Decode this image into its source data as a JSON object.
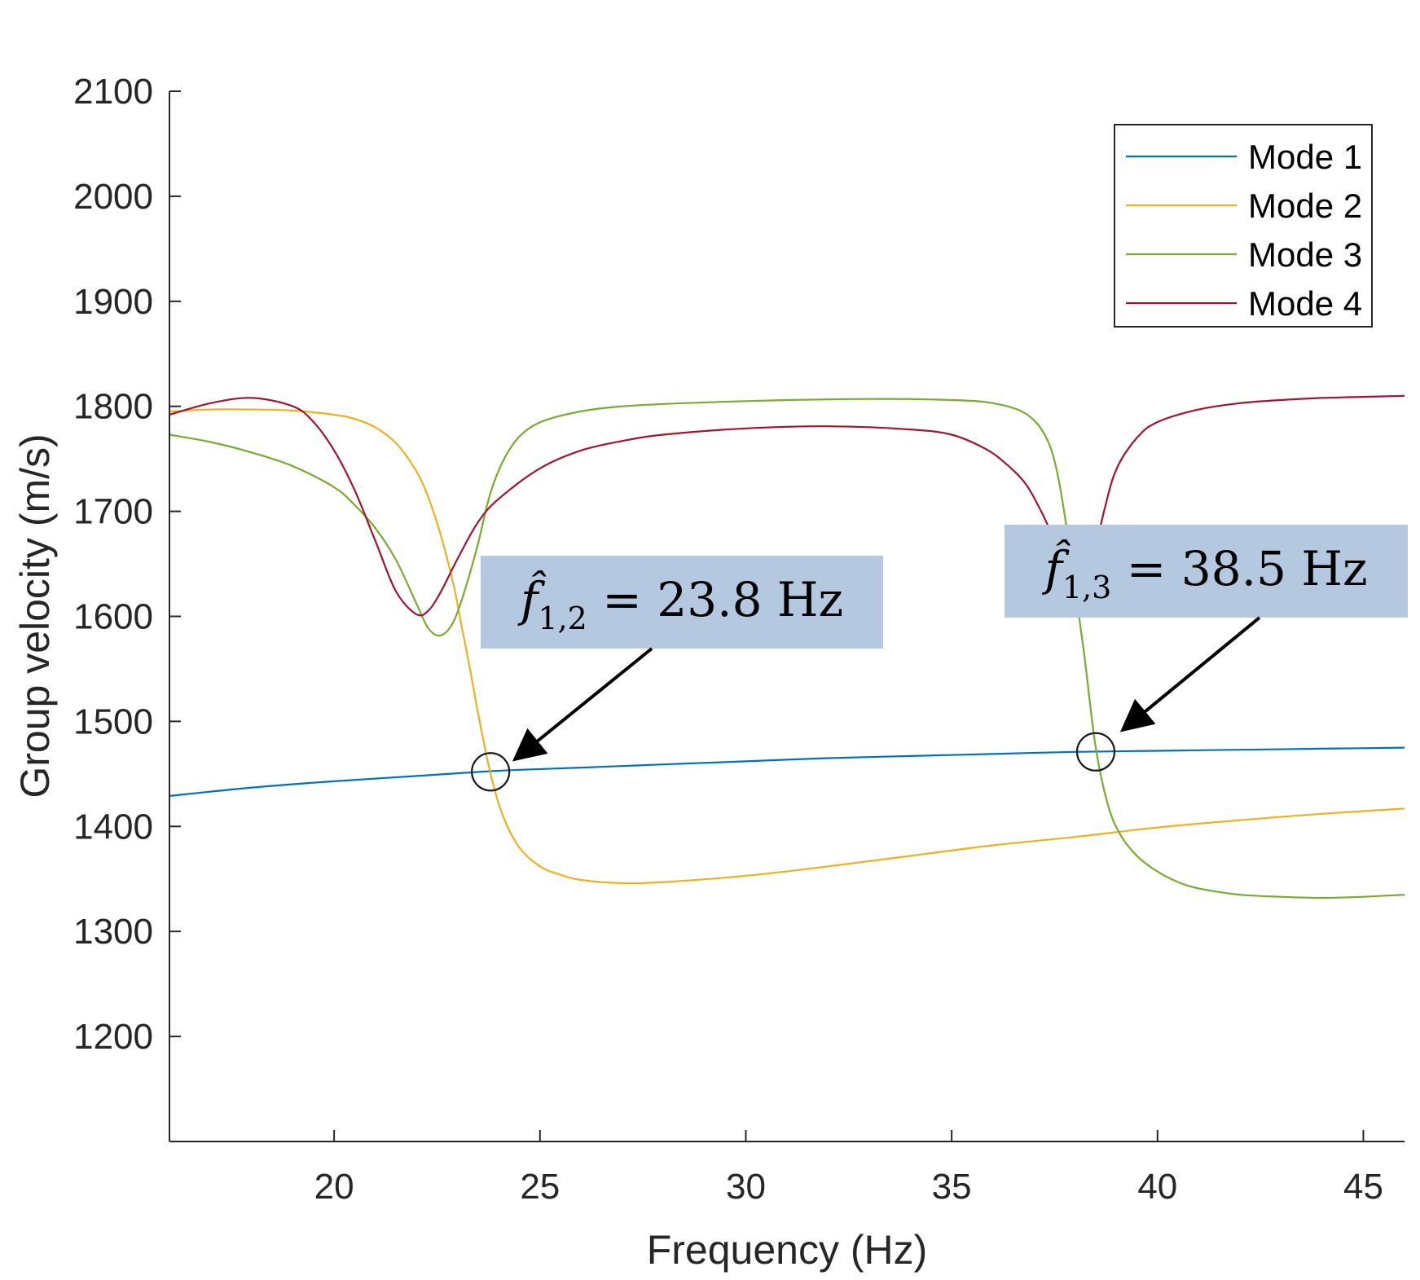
{
  "chart_data": {
    "type": "line",
    "title": "",
    "xlabel": "Frequency (Hz)",
    "ylabel": "Group velocity (m/s)",
    "xlim": [
      16,
      46
    ],
    "ylim": [
      1100,
      2100
    ],
    "xticks": [
      20,
      25,
      30,
      35,
      40,
      45
    ],
    "yticks": [
      1200,
      1300,
      1400,
      1500,
      1600,
      1700,
      1800,
      1900,
      2000,
      2100
    ],
    "grid": false,
    "legend": {
      "position": "top-right"
    },
    "series": [
      {
        "name": "Mode 1",
        "color": "#0072BD",
        "x": [
          16,
          18,
          20,
          22,
          24,
          26,
          28,
          30,
          32,
          34,
          36,
          38,
          40,
          42,
          44,
          46
        ],
        "y": [
          1429,
          1437,
          1443,
          1448,
          1453,
          1456,
          1459,
          1462,
          1465,
          1467,
          1469,
          1471,
          1472,
          1473,
          1474,
          1475
        ]
      },
      {
        "name": "Mode 2",
        "color": "#EDB120",
        "x": [
          16,
          17,
          18,
          19,
          20,
          20.5,
          21,
          21.5,
          22,
          22.3,
          22.6,
          22.9,
          23.1,
          23.3,
          23.5,
          23.8,
          24.1,
          24.5,
          25,
          25.5,
          26,
          27,
          28,
          30,
          32,
          34,
          36,
          38,
          40,
          42,
          44,
          46
        ],
        "y": [
          1795,
          1797,
          1797,
          1796,
          1792,
          1788,
          1780,
          1765,
          1738,
          1712,
          1676,
          1630,
          1590,
          1550,
          1507,
          1450,
          1410,
          1380,
          1362,
          1354,
          1349,
          1346,
          1347,
          1353,
          1362,
          1372,
          1382,
          1390,
          1399,
          1406,
          1412,
          1417
        ]
      },
      {
        "name": "Mode 3",
        "color": "#77AC30",
        "x": [
          16,
          17,
          18,
          19,
          20,
          20.5,
          21,
          21.5,
          22,
          22.3,
          22.6,
          22.9,
          23.2,
          23.5,
          23.8,
          24.2,
          24.7,
          25.5,
          27,
          30,
          33,
          35,
          36,
          36.8,
          37.3,
          37.6,
          37.9,
          38.2,
          38.5,
          38.8,
          39.1,
          39.5,
          40,
          40.5,
          41,
          42,
          43,
          44,
          45,
          46
        ],
        "y": [
          1773,
          1766,
          1756,
          1743,
          1723,
          1706,
          1684,
          1654,
          1612,
          1588,
          1582,
          1595,
          1628,
          1670,
          1718,
          1755,
          1778,
          1791,
          1800,
          1805,
          1807,
          1806,
          1803,
          1793,
          1770,
          1730,
          1655,
          1570,
          1475,
          1420,
          1392,
          1372,
          1357,
          1347,
          1341,
          1335,
          1333,
          1332,
          1333,
          1335
        ]
      },
      {
        "name": "Mode 4",
        "color": "#A2142F",
        "x": [
          16,
          17,
          18,
          19,
          19.5,
          20,
          20.5,
          21,
          21.5,
          22,
          22.3,
          22.6,
          23,
          23.5,
          24,
          25,
          26,
          27,
          28,
          30,
          32,
          34,
          35,
          35.8,
          36.3,
          36.8,
          37.2,
          37.5,
          37.8,
          38.1,
          38.4,
          38.7,
          39,
          39.5,
          40,
          41,
          42,
          43,
          44,
          45,
          46
        ],
        "y": [
          1792,
          1803,
          1808,
          1800,
          1785,
          1758,
          1720,
          1672,
          1624,
          1602,
          1606,
          1624,
          1655,
          1690,
          1712,
          1741,
          1758,
          1767,
          1773,
          1779,
          1781,
          1778,
          1773,
          1760,
          1746,
          1726,
          1698,
          1672,
          1648,
          1638,
          1650,
          1700,
          1740,
          1770,
          1785,
          1797,
          1803,
          1806,
          1808,
          1809,
          1810
        ]
      }
    ],
    "markers": [
      {
        "x": 23.8,
        "y": 1452
      },
      {
        "x": 38.5,
        "y": 1471
      }
    ],
    "annotations": [
      {
        "symbol": "f̂",
        "subscript": "1,2",
        "value_text": " = 23.8 Hz",
        "x": 23.8,
        "y": 1452
      },
      {
        "symbol": "f̂",
        "subscript": "1,3",
        "value_text": " = 38.5 Hz",
        "x": 38.5,
        "y": 1471
      }
    ]
  }
}
